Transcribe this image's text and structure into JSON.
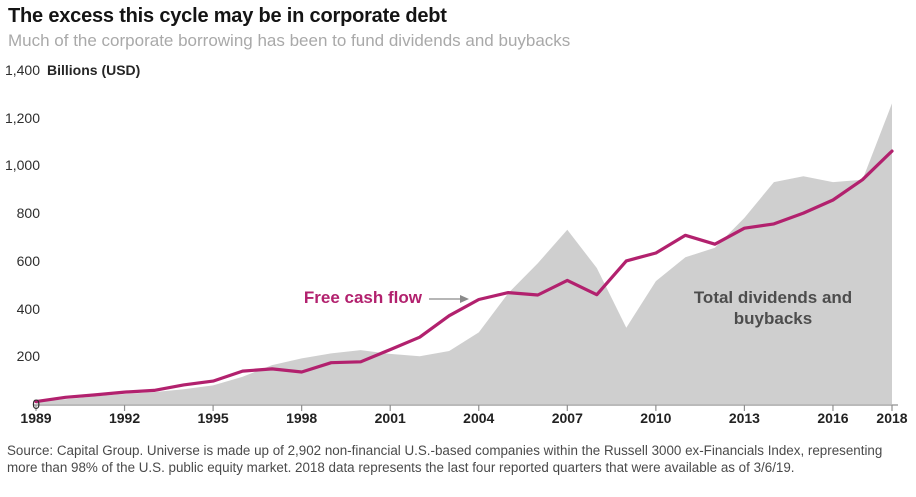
{
  "header": {
    "title": "The excess this cycle may be in corporate debt",
    "subtitle": "Much of the corporate borrowing has been to fund dividends and buybacks"
  },
  "chart_data": {
    "type": "area",
    "title": "The excess this cycle may be in corporate debt",
    "unit_label": "Billions (USD)",
    "xlim": [
      1989,
      2018
    ],
    "ylim": [
      0,
      1400
    ],
    "grid": false,
    "legend_position": "inline-annotations",
    "x": [
      1989,
      1990,
      1991,
      1992,
      1993,
      1994,
      1995,
      1996,
      1997,
      1998,
      1999,
      2000,
      2001,
      2002,
      2003,
      2004,
      2005,
      2006,
      2007,
      2008,
      2009,
      2010,
      2011,
      2012,
      2013,
      2014,
      2015,
      2016,
      2017,
      2018
    ],
    "series": [
      {
        "name": "Total dividends and buybacks",
        "type": "area",
        "color": "#cfcfcf",
        "label_color": "#4d4d4d",
        "values": [
          8,
          20,
          32,
          42,
          50,
          62,
          78,
          114,
          163,
          191,
          212,
          226,
          210,
          200,
          222,
          300,
          465,
          590,
          730,
          570,
          320,
          515,
          615,
          655,
          780,
          930,
          955,
          930,
          940,
          1260
        ]
      },
      {
        "name": "Free cash flow",
        "type": "line",
        "color": "#b2216e",
        "values": [
          10,
          28,
          38,
          50,
          57,
          80,
          96,
          138,
          147,
          134,
          173,
          177,
          228,
          280,
          370,
          438,
          467,
          457,
          518,
          458,
          600,
          633,
          707,
          670,
          737,
          755,
          800,
          855,
          940,
          1060
        ]
      }
    ],
    "xticks": [
      1989,
      1992,
      1995,
      1998,
      2001,
      2004,
      2007,
      2010,
      2013,
      2016,
      2018
    ],
    "yticks": [
      {
        "value": 0,
        "label": "0"
      },
      {
        "value": 200,
        "label": "200"
      },
      {
        "value": 400,
        "label": "400"
      },
      {
        "value": 600,
        "label": "600"
      },
      {
        "value": 800,
        "label": "800"
      },
      {
        "value": 1000,
        "label": "1,000"
      },
      {
        "value": 1200,
        "label": "1,200"
      },
      {
        "value": 1400,
        "label": "1,400"
      }
    ]
  },
  "footer": {
    "source": "Source: Capital Group. Universe is made up of 2,902 non-financial U.S.-based companies within the Russell 3000 ex-Financials Index, representing more than 98% of the U.S. public equity market. 2018 data represents the last four reported quarters that were available as of 3/6/19."
  }
}
